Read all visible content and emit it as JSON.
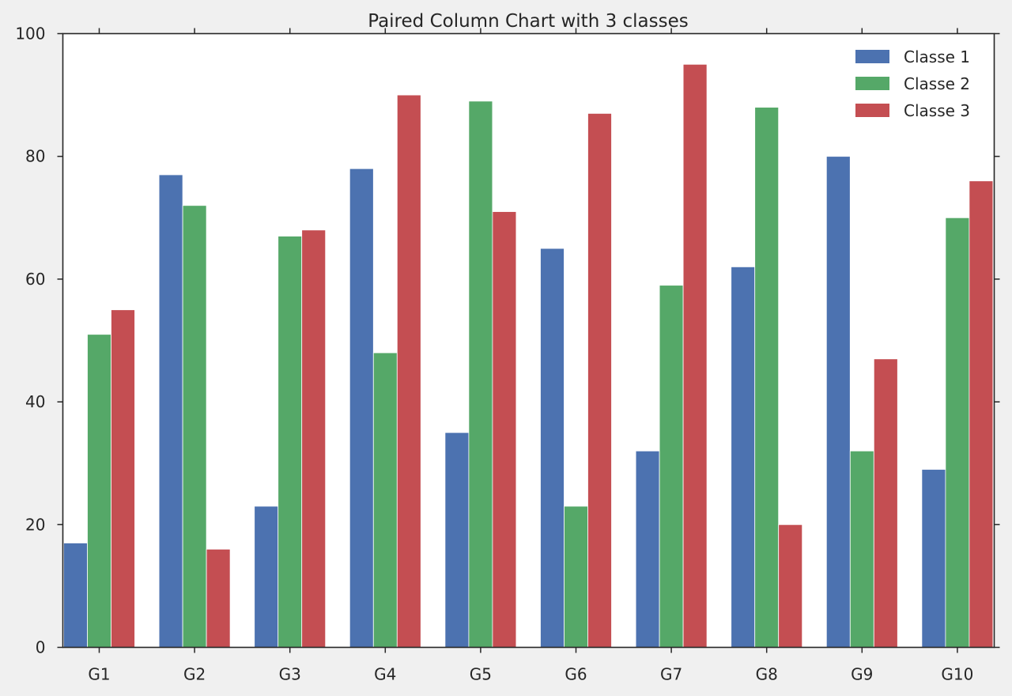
{
  "chart_data": {
    "type": "bar",
    "title": "Paired Column Chart with 3 classes",
    "xlabel": "",
    "ylabel": "",
    "categories": [
      "G1",
      "G2",
      "G3",
      "G4",
      "G5",
      "G6",
      "G7",
      "G8",
      "G9",
      "G10"
    ],
    "series": [
      {
        "name": "Classe 1",
        "color": "#4c72b0",
        "values": [
          17,
          77,
          23,
          78,
          35,
          65,
          32,
          62,
          80,
          29
        ]
      },
      {
        "name": "Classe 2",
        "color": "#55a868",
        "values": [
          51,
          72,
          67,
          48,
          89,
          23,
          59,
          88,
          32,
          70
        ]
      },
      {
        "name": "Classe 3",
        "color": "#c44e52",
        "values": [
          55,
          16,
          68,
          90,
          71,
          87,
          95,
          20,
          47,
          76
        ]
      }
    ],
    "ylim": [
      0,
      100
    ],
    "yticks": [
      0,
      20,
      40,
      60,
      80,
      100
    ],
    "grid": false,
    "legend_position": "top-right"
  }
}
